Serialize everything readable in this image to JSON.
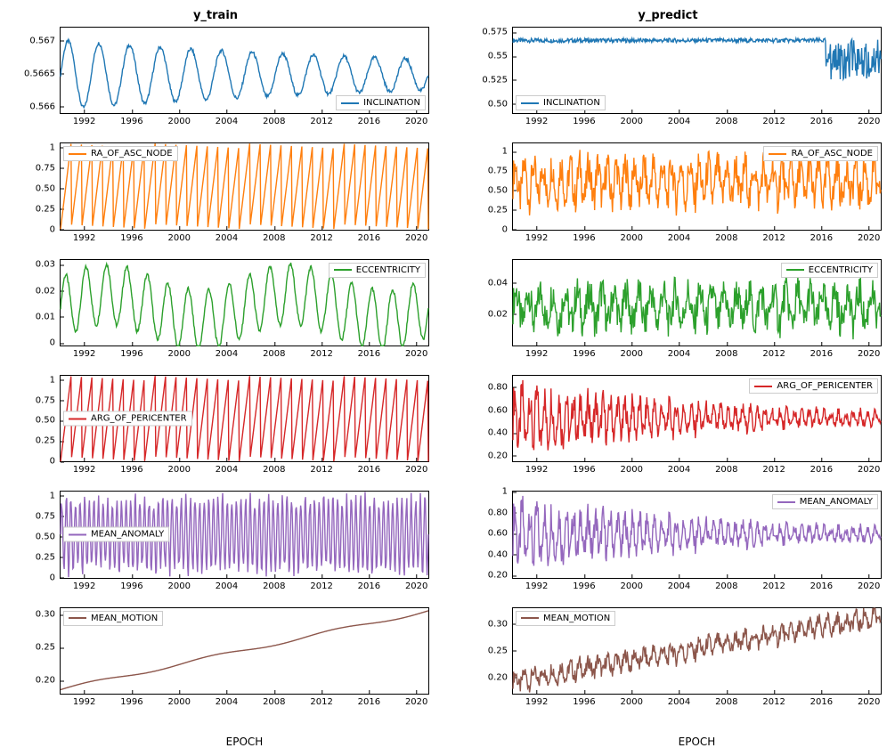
{
  "figure_size": [
    1005,
    822
  ],
  "x": {
    "label": "EPOCH",
    "ticks": [
      1992,
      1996,
      2000,
      2004,
      2008,
      2012,
      2016,
      2020
    ],
    "lim": [
      1990,
      2021
    ]
  },
  "columns": [
    {
      "key": "train",
      "title": "y_train"
    },
    {
      "key": "predict",
      "title": "y_predict"
    }
  ],
  "series_colors": {
    "INCLINATION": "#1f77b4",
    "RA_OF_ASC_NODE": "#ff7f0e",
    "ECCENTRICITY": "#2ca02c",
    "ARG_OF_PERICENTER": "#d62728",
    "MEAN_ANOMALY": "#9467bd",
    "MEAN_MOTION": "#8c564b"
  },
  "line_width": 1.4,
  "legend_fontsize": 10,
  "tick_fontsize": 10,
  "title_fontsize": 13,
  "panels": [
    {
      "name": "INCLINATION",
      "legend_pos": {
        "train": "br",
        "predict": "bl"
      },
      "ylim": {
        "train": [
          0.5659,
          0.5672
        ],
        "predict": [
          0.49,
          0.58
        ]
      },
      "yticks": {
        "train": [
          0.566,
          0.5665,
          0.567
        ],
        "predict": [
          0.5,
          0.525,
          0.55,
          0.575
        ]
      },
      "style": {
        "train": "damped_osc",
        "predict": "noisy_flat_dip"
      }
    },
    {
      "name": "RA_OF_ASC_NODE",
      "legend_pos": {
        "train": "tl",
        "predict": "tr"
      },
      "ylim": {
        "train": [
          0,
          1.05
        ],
        "predict": [
          0,
          1.1
        ]
      },
      "yticks": {
        "train": [
          0.0,
          0.25,
          0.5,
          0.75,
          1.0
        ],
        "predict": [
          0.0,
          0.25,
          0.5,
          0.75,
          1.0
        ]
      },
      "style": {
        "train": "sawtooth",
        "predict": "noisy_band"
      }
    },
    {
      "name": "ECCENTRICITY",
      "legend_pos": {
        "train": "tr",
        "predict": "tr"
      },
      "ylim": {
        "train": [
          -0.001,
          0.032
        ],
        "predict": [
          0,
          0.055
        ]
      },
      "yticks": {
        "train": [
          0.0,
          0.01,
          0.02,
          0.03
        ],
        "predict": [
          0.02,
          0.04
        ]
      },
      "style": {
        "train": "ecc",
        "predict": "noisy_band_ecc"
      }
    },
    {
      "name": "ARG_OF_PERICENTER",
      "legend_pos": {
        "train": "cl",
        "predict": "tr"
      },
      "ylim": {
        "train": [
          0,
          1.05
        ],
        "predict": [
          0.15,
          0.9
        ]
      },
      "yticks": {
        "train": [
          0.0,
          0.25,
          0.5,
          0.75,
          1.0
        ],
        "predict": [
          0.2,
          0.4,
          0.6,
          0.8
        ]
      },
      "style": {
        "train": "sawtooth",
        "predict": "noisy_converge"
      }
    },
    {
      "name": "MEAN_ANOMALY",
      "legend_pos": {
        "train": "cl",
        "predict": "tr"
      },
      "ylim": {
        "train": [
          0,
          1.05
        ],
        "predict": [
          0.18,
          1.0
        ]
      },
      "yticks": {
        "train": [
          0.0,
          0.25,
          0.5,
          0.75,
          1.0
        ],
        "predict": [
          0.2,
          0.4,
          0.6,
          0.8,
          1.0
        ]
      },
      "style": {
        "train": "dense_osc",
        "predict": "noisy_converge"
      }
    },
    {
      "name": "MEAN_MOTION",
      "legend_pos": {
        "train": "tl",
        "predict": "tl"
      },
      "ylim": {
        "train": [
          0.18,
          0.31
        ],
        "predict": [
          0.17,
          0.33
        ]
      },
      "yticks": {
        "train": [
          0.2,
          0.25,
          0.3
        ],
        "predict": [
          0.2,
          0.25,
          0.3
        ]
      },
      "style": {
        "train": "ramp",
        "predict": "noisy_ramp"
      }
    }
  ]
}
